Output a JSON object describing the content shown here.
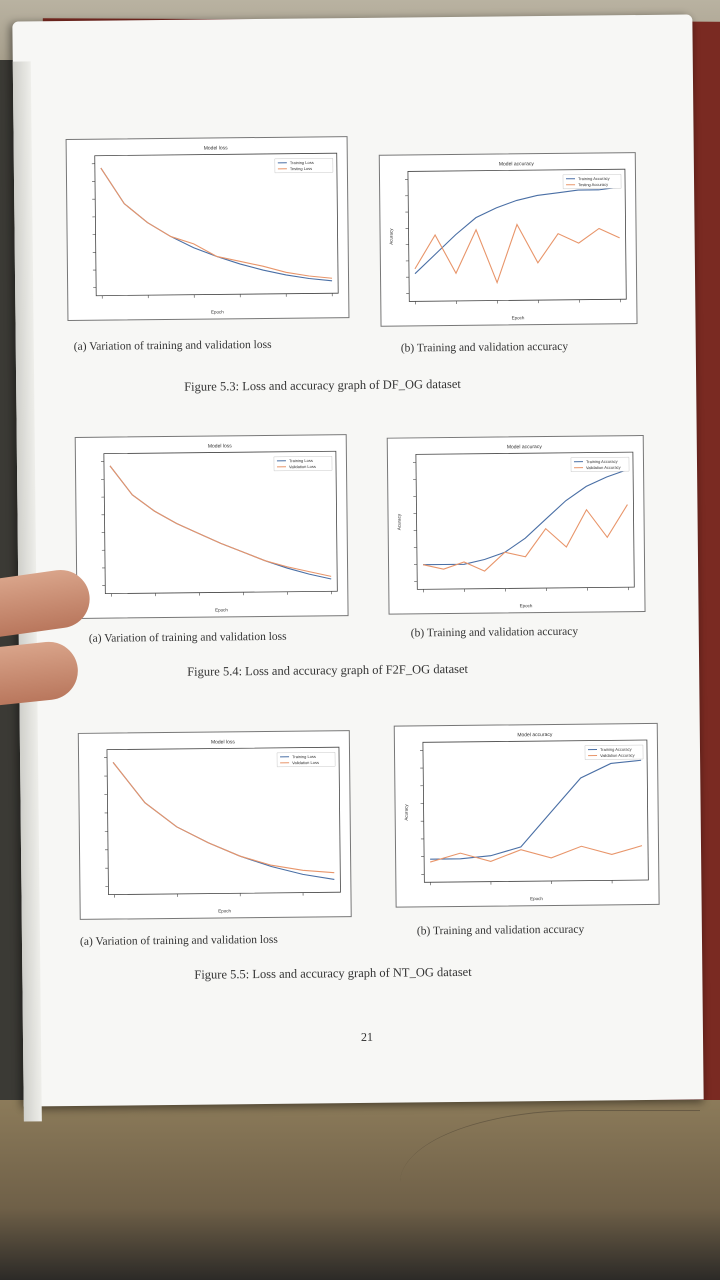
{
  "figures": [
    {
      "loss": {
        "title": "Model loss",
        "xlabel": "Epoch",
        "legend": [
          "Training Loss",
          "Testing Loss"
        ],
        "caption": "(a) Variation of training and validation loss"
      },
      "accuracy": {
        "title": "Model accuracy",
        "xlabel": "Epoch",
        "ylabel": "Acuracy",
        "legend": [
          "Training Accuracy",
          "Testing Accuracy"
        ],
        "caption": "(b) Training and validation accuracy"
      },
      "caption": "Figure 5.3: Loss and accuracy graph of DF_OG dataset"
    },
    {
      "loss": {
        "title": "Model loss",
        "xlabel": "Epoch",
        "legend": [
          "Training Loss",
          "Validation Loss"
        ],
        "caption": "(a) Variation of training and validation loss"
      },
      "accuracy": {
        "title": "Model accuracy",
        "xlabel": "Epoch",
        "ylabel": "Acuracy",
        "legend": [
          "Training Accuracy",
          "Validation Accuracy"
        ],
        "caption": "(b) Training and validation accuracy"
      },
      "caption": "Figure 5.4: Loss and accuracy graph of F2F_OG dataset"
    },
    {
      "loss": {
        "title": "Model loss",
        "xlabel": "Epoch",
        "legend": [
          "Training Loss",
          "Validation Loss"
        ],
        "caption": "(a) Variation of training and validation loss"
      },
      "accuracy": {
        "title": "Model accuracy",
        "xlabel": "Epoch",
        "ylabel": "Acuracy",
        "legend": [
          "Training Accuracy",
          "Validation Accuracy"
        ],
        "caption": "(b) Training and validation accuracy"
      },
      "caption": "Figure 5.5: Loss and accuracy graph of NT_OG dataset"
    }
  ],
  "page_number": "21",
  "colors": {
    "series_blue": "#4a6fa5",
    "series_orange": "#e8956a"
  },
  "chart_data": [
    {
      "type": "line",
      "title": "Model loss",
      "xlabel": "Epoch",
      "x": [
        0,
        5,
        10,
        15,
        20,
        25,
        30,
        35,
        40,
        45,
        50
      ],
      "series": [
        {
          "name": "Training Loss",
          "values": [
            0.98,
            0.7,
            0.55,
            0.44,
            0.35,
            0.28,
            0.22,
            0.17,
            0.13,
            0.1,
            0.08
          ]
        },
        {
          "name": "Testing Loss",
          "values": [
            0.98,
            0.7,
            0.55,
            0.44,
            0.38,
            0.28,
            0.24,
            0.2,
            0.15,
            0.12,
            0.1
          ]
        }
      ]
    },
    {
      "type": "line",
      "title": "Model accuracy",
      "xlabel": "Epoch",
      "ylabel": "Acuracy",
      "x": [
        0,
        5,
        10,
        15,
        20,
        25,
        30,
        35,
        40,
        45,
        50
      ],
      "series": [
        {
          "name": "Training Accuracy",
          "values": [
            0.62,
            0.7,
            0.78,
            0.85,
            0.89,
            0.92,
            0.94,
            0.95,
            0.96,
            0.96,
            0.97
          ]
        },
        {
          "name": "Testing Accuracy",
          "values": [
            0.64,
            0.78,
            0.62,
            0.8,
            0.58,
            0.82,
            0.66,
            0.78,
            0.74,
            0.8,
            0.76
          ]
        }
      ]
    },
    {
      "type": "line",
      "title": "Model loss",
      "xlabel": "Epoch",
      "x": [
        0,
        5,
        10,
        15,
        20,
        25,
        30,
        35,
        40,
        45,
        50
      ],
      "series": [
        {
          "name": "Training Loss",
          "values": [
            0.98,
            0.75,
            0.62,
            0.52,
            0.44,
            0.36,
            0.29,
            0.22,
            0.16,
            0.11,
            0.07
          ]
        },
        {
          "name": "Validation Loss",
          "values": [
            0.98,
            0.75,
            0.62,
            0.52,
            0.44,
            0.36,
            0.29,
            0.22,
            0.17,
            0.13,
            0.09
          ]
        }
      ]
    },
    {
      "type": "line",
      "title": "Model accuracy",
      "xlabel": "Epoch",
      "ylabel": "Acuracy",
      "x": [
        0,
        5,
        10,
        15,
        20,
        25,
        30,
        35,
        40,
        45,
        50
      ],
      "series": [
        {
          "name": "Training Accuracy",
          "values": [
            0.55,
            0.55,
            0.55,
            0.57,
            0.6,
            0.66,
            0.74,
            0.82,
            0.88,
            0.92,
            0.95
          ]
        },
        {
          "name": "Validation Accuracy",
          "values": [
            0.55,
            0.53,
            0.56,
            0.52,
            0.6,
            0.58,
            0.7,
            0.62,
            0.78,
            0.66,
            0.8
          ]
        }
      ]
    },
    {
      "type": "line",
      "title": "Model loss",
      "xlabel": "Epoch",
      "x": [
        0,
        10,
        20,
        30,
        40,
        50,
        60,
        70
      ],
      "series": [
        {
          "name": "Training Loss",
          "values": [
            0.98,
            0.68,
            0.5,
            0.38,
            0.28,
            0.2,
            0.14,
            0.1
          ]
        },
        {
          "name": "Validation Loss",
          "values": [
            0.98,
            0.68,
            0.5,
            0.38,
            0.28,
            0.21,
            0.17,
            0.15
          ]
        }
      ]
    },
    {
      "type": "line",
      "title": "Model accuracy",
      "xlabel": "Epoch",
      "ylabel": "Acuracy",
      "x": [
        0,
        10,
        20,
        30,
        40,
        50,
        60,
        70
      ],
      "series": [
        {
          "name": "Training Accuracy",
          "values": [
            0.58,
            0.58,
            0.59,
            0.62,
            0.74,
            0.86,
            0.91,
            0.92
          ]
        },
        {
          "name": "Validation Accuracy",
          "values": [
            0.57,
            0.6,
            0.57,
            0.61,
            0.58,
            0.62,
            0.59,
            0.62
          ]
        }
      ]
    }
  ]
}
